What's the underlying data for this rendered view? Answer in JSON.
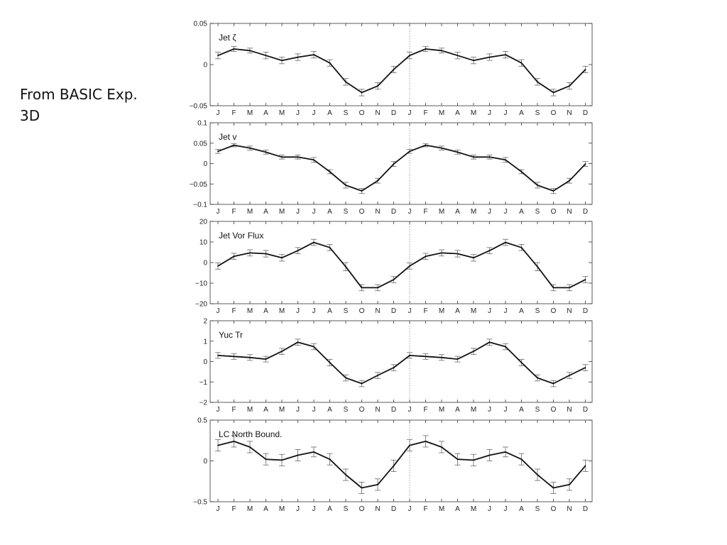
{
  "caption": {
    "line1": "From BASIC Exp.",
    "line2": "3D"
  },
  "chart_data": [
    {
      "type": "line",
      "title": "Jet ζ",
      "categories": [
        "J",
        "F",
        "M",
        "A",
        "M",
        "J",
        "J",
        "A",
        "S",
        "O",
        "N",
        "D",
        "J",
        "F",
        "M",
        "A",
        "M",
        "J",
        "J",
        "A",
        "S",
        "O",
        "N",
        "D"
      ],
      "values": [
        0.011,
        0.019,
        0.017,
        0.011,
        0.005,
        0.009,
        0.012,
        0.002,
        -0.021,
        -0.034,
        -0.026,
        -0.006,
        0.011,
        0.019,
        0.017,
        0.011,
        0.005,
        0.009,
        0.012,
        0.002,
        -0.021,
        -0.034,
        -0.026,
        -0.006
      ],
      "errors": [
        0.004,
        0.003,
        0.003,
        0.004,
        0.004,
        0.004,
        0.004,
        0.004,
        0.004,
        0.004,
        0.004,
        0.004,
        0.004,
        0.003,
        0.003,
        0.004,
        0.004,
        0.004,
        0.004,
        0.004,
        0.004,
        0.004,
        0.004,
        0.004
      ],
      "ylim": [
        -0.05,
        0.05
      ],
      "yticks": [
        -0.05,
        0,
        0.05
      ],
      "ytick_labels": [
        "−0.05",
        "0",
        "0.05"
      ]
    },
    {
      "type": "line",
      "title": "Jet v",
      "categories": [
        "J",
        "F",
        "M",
        "A",
        "M",
        "J",
        "J",
        "A",
        "S",
        "O",
        "N",
        "D",
        "J",
        "F",
        "M",
        "A",
        "M",
        "J",
        "J",
        "A",
        "S",
        "O",
        "N",
        "D"
      ],
      "values": [
        0.03,
        0.045,
        0.038,
        0.028,
        0.016,
        0.016,
        0.009,
        -0.02,
        -0.053,
        -0.067,
        -0.042,
        -0.001,
        0.03,
        0.045,
        0.038,
        0.028,
        0.016,
        0.016,
        0.009,
        -0.02,
        -0.053,
        -0.067,
        -0.042,
        -0.001
      ],
      "errors": [
        0.005,
        0.004,
        0.005,
        0.005,
        0.005,
        0.005,
        0.006,
        0.005,
        0.007,
        0.006,
        0.006,
        0.006,
        0.005,
        0.004,
        0.005,
        0.005,
        0.005,
        0.005,
        0.006,
        0.005,
        0.007,
        0.006,
        0.006,
        0.006
      ],
      "ylim": [
        -0.1,
        0.1
      ],
      "yticks": [
        -0.1,
        -0.05,
        0,
        0.05,
        0.1
      ],
      "ytick_labels": [
        "−0.1",
        "−0.05",
        "0",
        "0.05",
        "0.1"
      ]
    },
    {
      "type": "line",
      "title": "Jet Vor Flux",
      "categories": [
        "J",
        "F",
        "M",
        "A",
        "M",
        "J",
        "J",
        "A",
        "S",
        "O",
        "N",
        "D",
        "J",
        "F",
        "M",
        "A",
        "M",
        "J",
        "J",
        "A",
        "S",
        "O",
        "N",
        "D"
      ],
      "values": [
        -1.7,
        3,
        4.7,
        4.3,
        2.3,
        5.8,
        9.8,
        7.3,
        -2,
        -12.2,
        -12.2,
        -8.3,
        -1.7,
        3,
        4.7,
        4.3,
        2.3,
        5.8,
        9.8,
        7.3,
        -2,
        -12.2,
        -12.2,
        -8.3
      ],
      "errors": [
        1.5,
        1.5,
        1.5,
        1.6,
        1.6,
        1.5,
        1.5,
        1.5,
        2,
        1.5,
        1.5,
        1.5,
        1.5,
        1.5,
        1.5,
        1.6,
        1.6,
        1.5,
        1.5,
        1.5,
        2,
        1.5,
        1.5,
        1.5
      ],
      "ylim": [
        -20,
        20
      ],
      "yticks": [
        -20,
        -10,
        0,
        10,
        20
      ],
      "ytick_labels": [
        "−20",
        "−10",
        "0",
        "10",
        "20"
      ]
    },
    {
      "type": "line",
      "title": "Yuc Tr",
      "categories": [
        "J",
        "F",
        "M",
        "A",
        "M",
        "J",
        "J",
        "A",
        "S",
        "O",
        "N",
        "D",
        "J",
        "F",
        "M",
        "A",
        "M",
        "J",
        "J",
        "A",
        "S",
        "O",
        "N",
        "D"
      ],
      "values": [
        0.3,
        0.25,
        0.2,
        0.12,
        0.5,
        0.95,
        0.73,
        -0.05,
        -0.8,
        -1.08,
        -0.68,
        -0.3,
        0.3,
        0.25,
        0.2,
        0.12,
        0.5,
        0.95,
        0.73,
        -0.05,
        -0.8,
        -1.08,
        -0.68,
        -0.3
      ],
      "errors": [
        0.14,
        0.14,
        0.14,
        0.14,
        0.15,
        0.15,
        0.15,
        0.16,
        0.15,
        0.15,
        0.15,
        0.15,
        0.14,
        0.14,
        0.14,
        0.14,
        0.15,
        0.15,
        0.15,
        0.16,
        0.15,
        0.15,
        0.15,
        0.15
      ],
      "ylim": [
        -2,
        2
      ],
      "yticks": [
        -2,
        -1,
        0,
        1,
        2
      ],
      "ytick_labels": [
        "−2",
        "−1",
        "0",
        "1",
        "2"
      ]
    },
    {
      "type": "line",
      "title": "LC North Bound.",
      "categories": [
        "J",
        "F",
        "M",
        "A",
        "M",
        "J",
        "J",
        "A",
        "S",
        "O",
        "N",
        "D",
        "J",
        "F",
        "M",
        "A",
        "M",
        "J",
        "J",
        "A",
        "S",
        "O",
        "N",
        "D"
      ],
      "values": [
        0.19,
        0.24,
        0.17,
        0.02,
        0.01,
        0.07,
        0.11,
        0.02,
        -0.17,
        -0.33,
        -0.29,
        -0.06,
        0.19,
        0.24,
        0.17,
        0.02,
        0.01,
        0.07,
        0.11,
        0.02,
        -0.17,
        -0.33,
        -0.29,
        -0.06
      ],
      "errors": [
        0.07,
        0.07,
        0.07,
        0.07,
        0.07,
        0.07,
        0.06,
        0.07,
        0.07,
        0.07,
        0.07,
        0.07,
        0.07,
        0.07,
        0.07,
        0.07,
        0.07,
        0.07,
        0.06,
        0.07,
        0.07,
        0.07,
        0.07,
        0.07
      ],
      "ylim": [
        -0.5,
        0.5
      ],
      "yticks": [
        -0.5,
        0,
        0.5
      ],
      "ytick_labels": [
        "−0.5",
        "0",
        "0.5"
      ]
    }
  ]
}
